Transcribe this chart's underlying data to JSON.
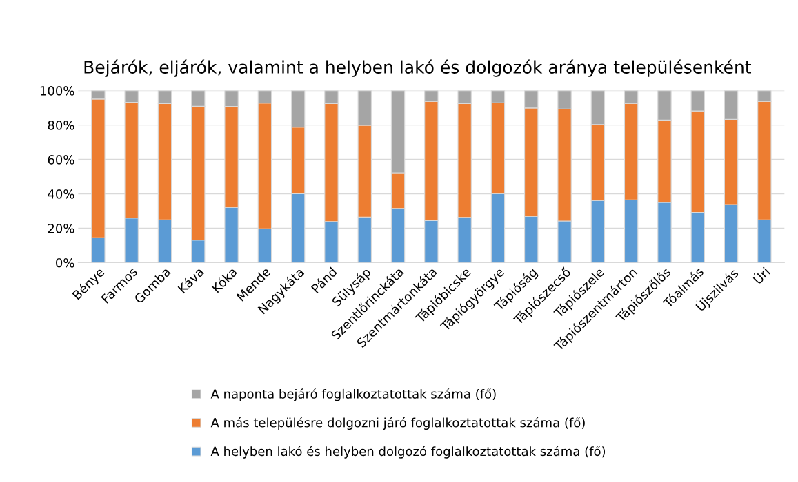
{
  "chart_data": {
    "type": "bar",
    "stacked": true,
    "title": "Bejárók, eljárók, valamint a helyben lakó és dolgozók aránya településenként",
    "categories": [
      "Bénye",
      "Farmos",
      "Gomba",
      "Káva",
      "Kóka",
      "Mende",
      "Nagykáta",
      "Pánd",
      "Sülysáp",
      "Szentlőrinckáta",
      "Szentmártonkáta",
      "Tápióbicske",
      "Tápiógyörgye",
      "Tápióság",
      "Tápiószecső",
      "Tápiószele",
      "Tápiószentmárton",
      "Tápiószőlős",
      "Tóalmás",
      "Újszilvás",
      "Úri"
    ],
    "series": [
      {
        "name": "A helyben lakó és helyben dolgozó foglalkoztatottak száma (fő)",
        "color": "#5b9bd5",
        "values": [
          14.5,
          25.9,
          24.9,
          13.1,
          32.1,
          19.7,
          40.0,
          23.9,
          26.5,
          31.5,
          24.4,
          26.3,
          40.1,
          26.9,
          24.2,
          36.1,
          36.5,
          35.0,
          29.2,
          33.8,
          24.9
        ]
      },
      {
        "name": "A más településre dolgozni járó foglalkoztatottak száma (fő)",
        "color": "#ed7d31",
        "values": [
          80.6,
          67.3,
          67.6,
          77.8,
          58.7,
          73.1,
          38.8,
          68.6,
          53.4,
          20.7,
          69.4,
          66.2,
          52.8,
          63.0,
          65.1,
          44.2,
          56.1,
          47.9,
          59.0,
          49.5,
          68.9
        ]
      },
      {
        "name": "A naponta bejáró foglalkoztatottak száma (fő)",
        "color": "#a5a5a5",
        "values": [
          4.9,
          6.8,
          7.5,
          9.1,
          9.2,
          7.2,
          21.2,
          7.5,
          20.1,
          47.8,
          6.2,
          7.5,
          7.1,
          10.1,
          10.7,
          19.7,
          7.4,
          17.1,
          11.8,
          16.7,
          6.2
        ]
      }
    ],
    "ylim": [
      0,
      100
    ],
    "yticks": [
      {
        "value": 0,
        "label": "0%"
      },
      {
        "value": 20,
        "label": "20%"
      },
      {
        "value": 40,
        "label": "40%"
      },
      {
        "value": 60,
        "label": "60%"
      },
      {
        "value": 80,
        "label": "80%"
      },
      {
        "value": 100,
        "label": "100%"
      }
    ],
    "grid": "y",
    "legend": "bottom"
  }
}
